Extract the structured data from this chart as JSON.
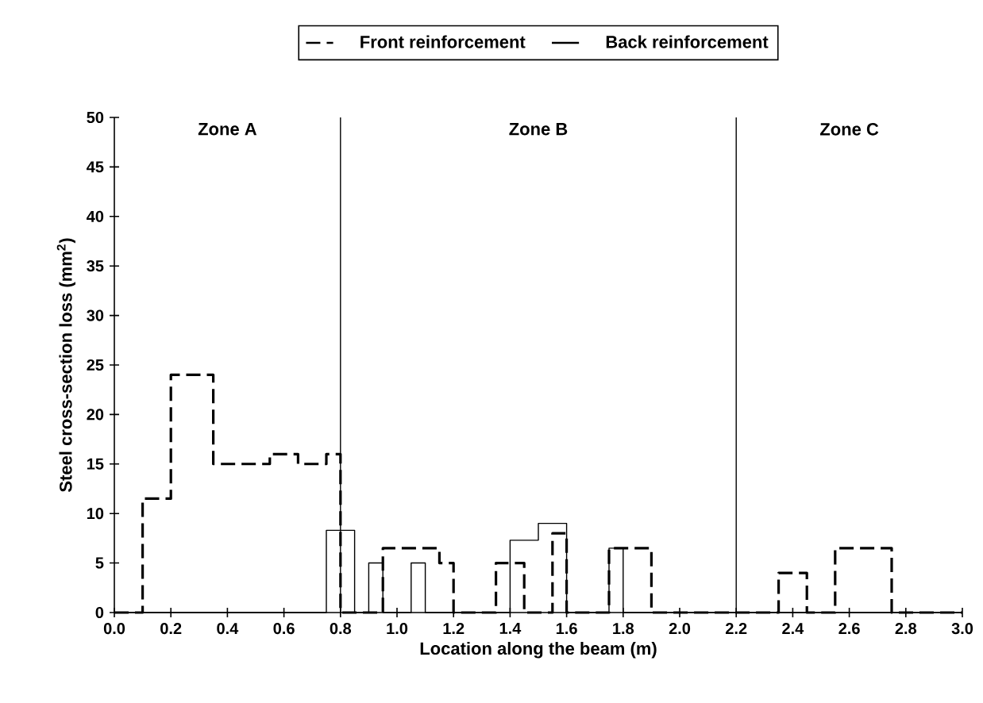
{
  "chart_data": {
    "type": "step",
    "xlabel": "Location along the beam (m)",
    "ylabel": "Steel cross-section loss (mm$^{2}$)",
    "xlim": [
      0,
      3.0
    ],
    "ylim": [
      0,
      50
    ],
    "xticks": [
      {
        "value": 0,
        "label": "0.0"
      },
      {
        "value": 0.2,
        "label": "0.2"
      },
      {
        "value": 0.4,
        "label": "0.4"
      },
      {
        "value": 0.6,
        "label": "0.6"
      },
      {
        "value": 0.8,
        "label": "0.8"
      },
      {
        "value": 1.0,
        "label": "1.0"
      },
      {
        "value": 1.2,
        "label": "1.2"
      },
      {
        "value": 1.4,
        "label": "1.4"
      },
      {
        "value": 1.6,
        "label": "1.6"
      },
      {
        "value": 1.8,
        "label": "1.8"
      },
      {
        "value": 2.0,
        "label": "2.0"
      },
      {
        "value": 2.2,
        "label": "2.2"
      },
      {
        "value": 2.4,
        "label": "2.4"
      },
      {
        "value": 2.6,
        "label": "2.6"
      },
      {
        "value": 2.8,
        "label": "2.8"
      },
      {
        "value": 3.0,
        "label": "3.0"
      }
    ],
    "yticks": [
      0,
      5,
      10,
      15,
      20,
      25,
      30,
      35,
      40,
      45,
      50
    ],
    "legend": "top",
    "marker": "none",
    "series": [
      {
        "name": "Front reinforcement",
        "color": "#000000",
        "line_style": "dashed",
        "x": [
          0,
          0.1,
          0.2,
          0.35,
          0.55,
          0.65,
          0.75,
          0.8,
          0.95,
          1.15,
          1.2,
          1.35,
          1.45,
          1.55,
          1.6,
          1.75,
          1.9,
          2.35,
          2.45,
          2.55,
          2.75,
          3.0
        ],
        "values": [
          0,
          11.5,
          24,
          15,
          16,
          15,
          16,
          0,
          6.5,
          5,
          0,
          5,
          0,
          8,
          0,
          6.5,
          0,
          4,
          0,
          6.5,
          0,
          0
        ]
      },
      {
        "name": "Back reinforcement",
        "color": "#000000",
        "line_style": "solid",
        "x": [
          0,
          0.75,
          0.85,
          0.9,
          0.95,
          1.05,
          1.1,
          1.4,
          1.5,
          1.6,
          1.75,
          1.8,
          3.0
        ],
        "values": [
          0,
          8.3,
          0,
          5,
          0,
          5,
          0,
          7.3,
          9,
          0,
          6.5,
          0,
          0
        ]
      }
    ],
    "ref_lines": [
      {
        "axis": "x",
        "value": 0.8,
        "color": "#000000"
      },
      {
        "axis": "x",
        "value": 2.2,
        "color": "#000000"
      }
    ],
    "annotations": [
      "Zone A",
      "Zone B",
      "Zone C"
    ]
  }
}
